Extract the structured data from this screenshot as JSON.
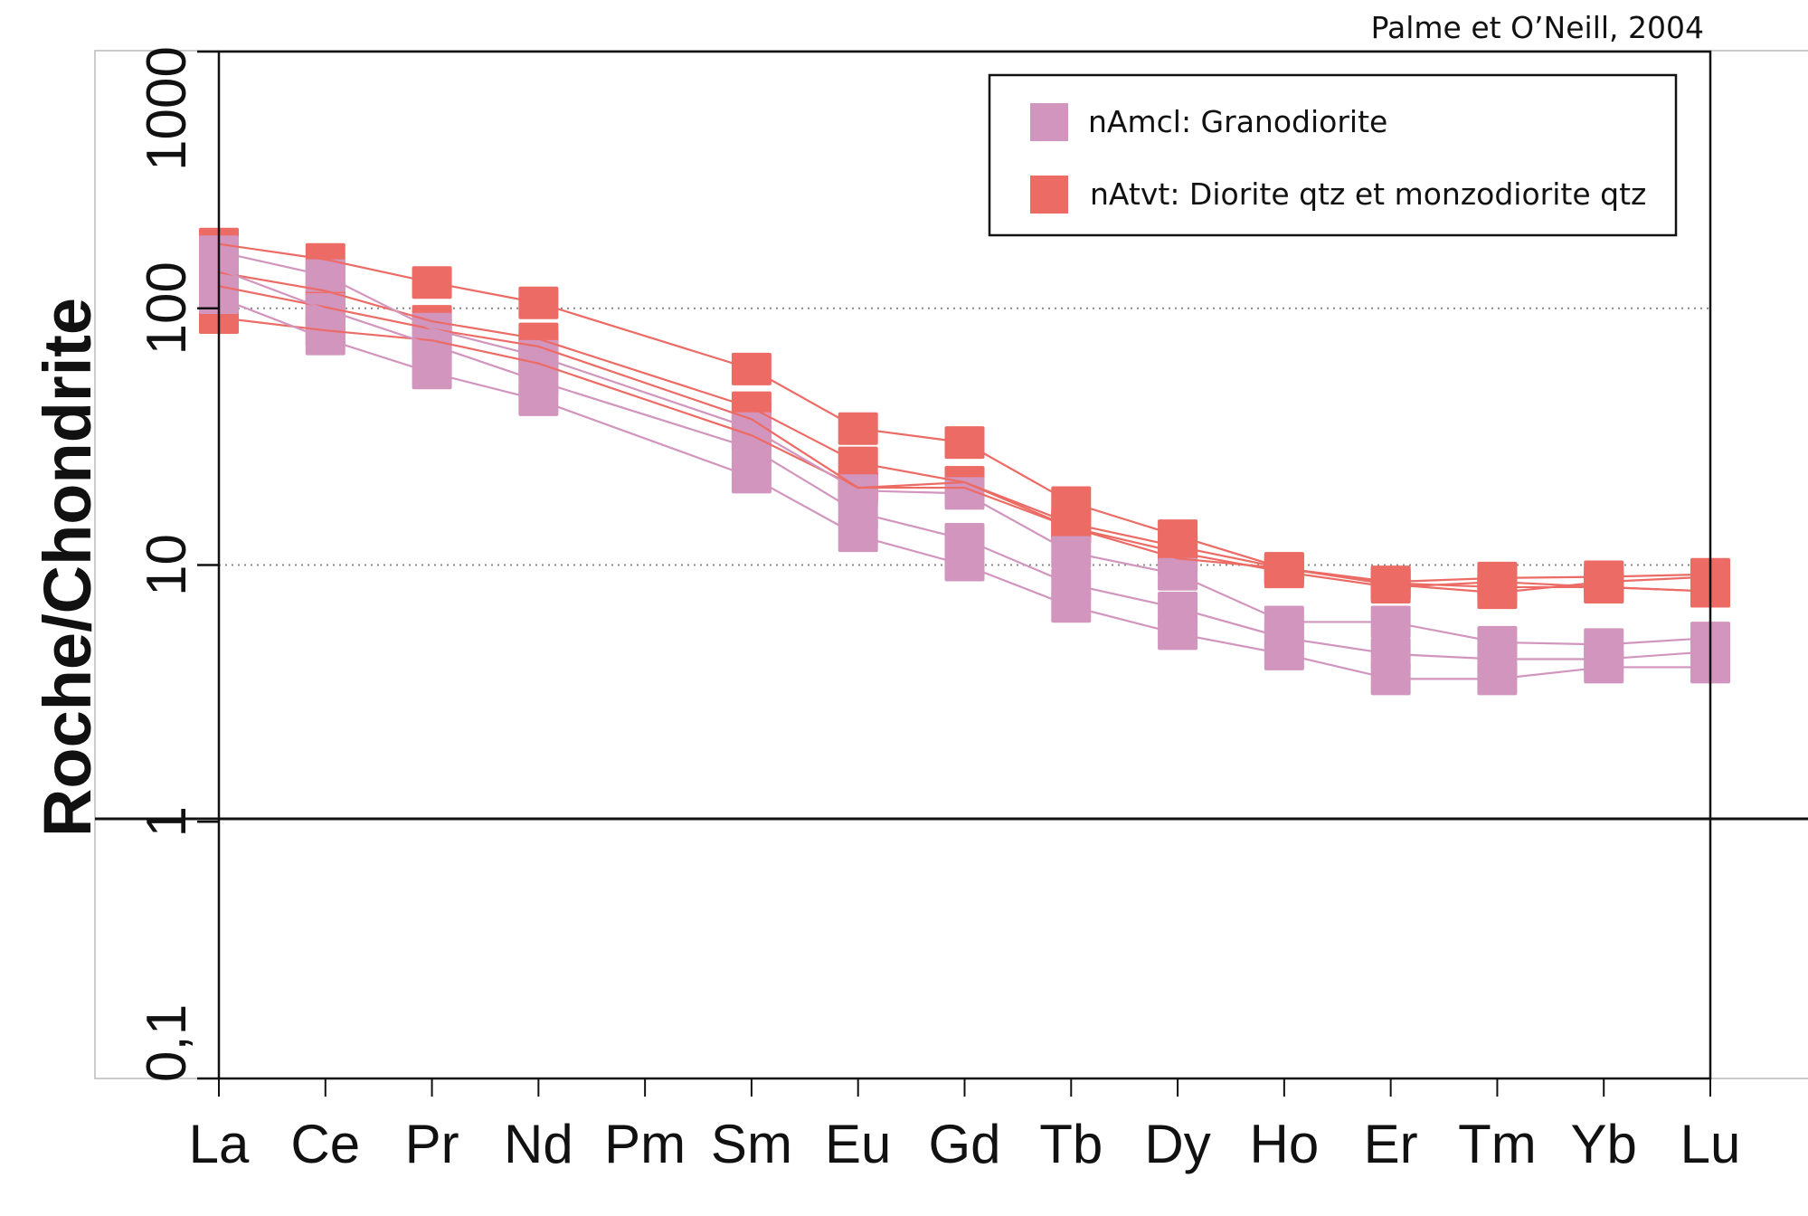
{
  "chart_data": {
    "type": "line",
    "title": "",
    "reference": "Palme et O’Neill, 2004",
    "xlabel": "",
    "ylabel": "Roche/Chondrite",
    "yscale": "log",
    "ylim": [
      0.1,
      1000
    ],
    "yticks": [
      {
        "v": 1000,
        "label": "1000"
      },
      {
        "v": 100,
        "label": "100"
      },
      {
        "v": 10,
        "label": "10"
      },
      {
        "v": 1,
        "label": "1"
      },
      {
        "v": 0.1,
        "label": "0,1"
      }
    ],
    "grid": "dotted at 10 and 100",
    "legend_position": "top-right",
    "categories": [
      "La",
      "Ce",
      "Pr",
      "Nd",
      "Pm",
      "Sm",
      "Eu",
      "Gd",
      "Tb",
      "Dy",
      "Ho",
      "Er",
      "Tm",
      "Yb",
      "Lu"
    ],
    "groups": [
      {
        "name": "nAtvt: Diorite qtz et monzodiorite qtz",
        "color": "#ec6b65",
        "series": [
          [
            178,
            155,
            126,
            105,
            null,
            58,
            34,
            30,
            17.5,
            13,
            9.7,
            8.6,
            8.9,
            9,
            9.2
          ],
          [
            138,
            117,
            89,
            76,
            null,
            41,
            25,
            21,
            14.5,
            11.8,
            9.7,
            8.4,
            7.8,
            8.6,
            9
          ],
          [
            122,
            101,
            83,
            71,
            null,
            37,
            20,
            21,
            14,
            11.2,
            9.4,
            8.2,
            8.6,
            8.2,
            7.9
          ],
          [
            92,
            82,
            75,
            61,
            null,
            32,
            20,
            20,
            14,
            10.6,
            9.7,
            8.5,
            8.2,
            8.2,
            7.9
          ]
        ]
      },
      {
        "name": "nAmcl: Granodiorite",
        "color": "#d295bd",
        "series": [
          [
            166,
            134,
            83,
            65,
            null,
            34,
            19.5,
            19,
            11.2,
            9.2,
            6,
            6,
            5,
            4.9,
            5.2
          ],
          [
            142,
            99,
            72,
            52,
            null,
            28.5,
            16,
            12.6,
            8.4,
            6.8,
            5.2,
            4.5,
            4.3,
            4.3,
            4.6
          ],
          [
            110,
            76,
            56,
            44,
            null,
            22,
            13,
            10,
            6.9,
            5.4,
            4.5,
            3.6,
            3.6,
            4,
            4
          ]
        ]
      }
    ],
    "legend": [
      "nAmcl: Granodiorite",
      "nAtvt: Diorite qtz et monzodiorite qtz"
    ]
  }
}
